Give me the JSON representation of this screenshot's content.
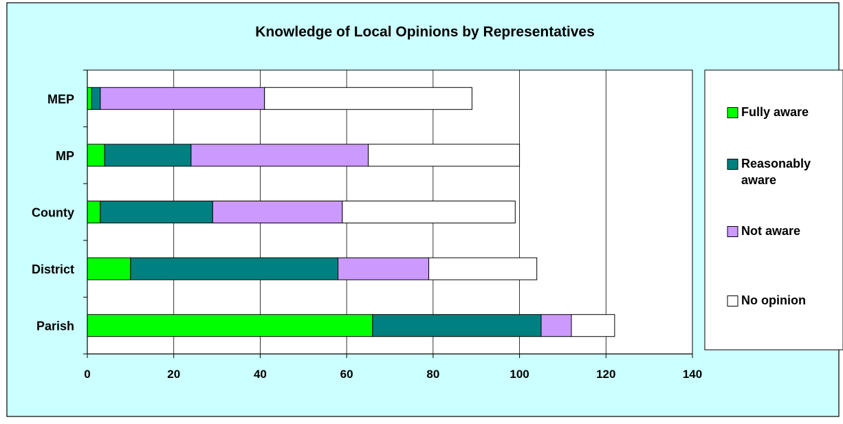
{
  "chart_data": {
    "type": "bar",
    "orientation": "horizontal",
    "stacked": true,
    "title": "Knowledge of Local Opinions by Representatives",
    "xlabel": "",
    "ylabel": "",
    "categories": [
      "Parish",
      "District",
      "County",
      "MP",
      "MEP"
    ],
    "series": [
      {
        "name": "Fully aware",
        "color": "#00ff00",
        "values": [
          66,
          10,
          3,
          4,
          1
        ]
      },
      {
        "name": "Reasonably aware",
        "color": "#008080",
        "values": [
          39,
          48,
          26,
          20,
          2
        ]
      },
      {
        "name": "Not aware",
        "color": "#cc99ff",
        "values": [
          7,
          21,
          30,
          41,
          38
        ]
      },
      {
        "name": "No opinion",
        "color": "#ffffff",
        "values": [
          10,
          25,
          40,
          35,
          48
        ]
      }
    ],
    "xlim": [
      0,
      140
    ],
    "xticks": [
      0,
      20,
      40,
      60,
      80,
      100,
      120,
      140
    ],
    "grid": "vertical",
    "legend_position": "right",
    "background_color": "#ccffff",
    "plot_background_color": "#ffffff"
  }
}
